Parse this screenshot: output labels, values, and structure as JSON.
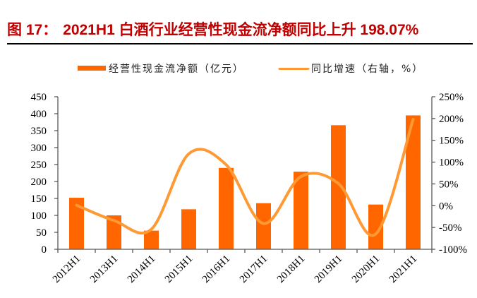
{
  "header": {
    "figure_label": "图 17：",
    "title": "2021H1 白酒行业经营性现金流净额同比上升 198.07%"
  },
  "legend": {
    "bar_label": "经营性现金流净额（亿元）",
    "line_label": "同比增速（右轴，%）"
  },
  "colors": {
    "title": "#C00000",
    "bar": "#FF6600",
    "line": "#FF9933",
    "axis": "#595959"
  },
  "chart_data": {
    "type": "bar+line",
    "title": "图 17：2021H1 白酒行业经营性现金流净额同比上升 198.07%",
    "categories": [
      "2012H1",
      "2013H1",
      "2014H1",
      "2015H1",
      "2016H1",
      "2017H1",
      "2018H1",
      "2019H1",
      "2020H1",
      "2021H1"
    ],
    "series": [
      {
        "name": "经营性现金流净额（亿元）",
        "type": "bar",
        "axis": "left",
        "values": [
          152,
          100,
          55,
          118,
          240,
          136,
          229,
          366,
          132,
          395
        ]
      },
      {
        "name": "同比增速（右轴，%）",
        "type": "line",
        "axis": "right",
        "smooth": true,
        "values": [
          1,
          -34,
          -54,
          119,
          94,
          -41,
          67,
          51,
          -65,
          198.07
        ]
      }
    ],
    "xlabel": "",
    "ylabel_left": "",
    "ylabel_right": "",
    "ylim_left": [
      0,
      450
    ],
    "yticks_left": [
      0,
      50,
      100,
      150,
      200,
      250,
      300,
      350,
      400,
      450
    ],
    "ylim_right": [
      -100,
      250
    ],
    "yticks_right": [
      -100,
      -50,
      0,
      50,
      100,
      150,
      200,
      250
    ],
    "ytick_right_suffix": "%",
    "grid": false,
    "legend_position": "top"
  }
}
